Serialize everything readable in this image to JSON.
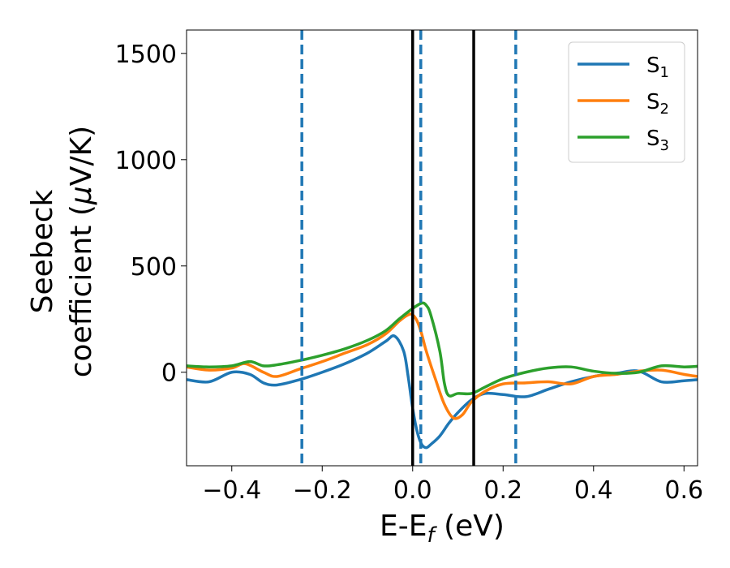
{
  "chart_data": {
    "type": "line",
    "xlabel": "E-E",
    "xlabel_sub": "f",
    "xlabel_unit": " (eV)",
    "ylabel_line1": "Seebeck",
    "ylabel_line2": "coefficient  (",
    "ylabel_mu": "μ",
    "ylabel_unit": "V/K)",
    "xlim": [
      -0.5,
      0.63
    ],
    "ylim": [
      -440,
      1610
    ],
    "xticks": [
      -0.4,
      -0.2,
      0.0,
      0.2,
      0.4,
      0.6
    ],
    "xtick_labels": [
      "−0.4",
      "−0.2",
      "0.0",
      "0.2",
      "0.4",
      "0.6"
    ],
    "yticks": [
      0,
      500,
      1000,
      1500
    ],
    "ytick_labels": [
      "0",
      "500",
      "1000",
      "1500"
    ],
    "grid": false,
    "legend_position": "top-right",
    "vlines_solid": [
      0.0,
      0.135
    ],
    "vlines_dashed": [
      -0.245,
      0.018,
      0.228
    ],
    "vline_solid_color": "#000000",
    "vline_dashed_color": "#1f77b4",
    "series": [
      {
        "name": "S",
        "sub": "1",
        "color": "#1f77b4",
        "x": [
          -0.5,
          -0.45,
          -0.4,
          -0.36,
          -0.33,
          -0.3,
          -0.25,
          -0.2,
          -0.15,
          -0.1,
          -0.06,
          -0.04,
          -0.02,
          -0.01,
          0.0,
          0.01,
          0.02,
          0.03,
          0.04,
          0.06,
          0.08,
          0.1,
          0.13,
          0.16,
          0.2,
          0.25,
          0.3,
          0.35,
          0.4,
          0.45,
          0.5,
          0.55,
          0.6,
          0.63
        ],
        "y": [
          -35,
          -45,
          0,
          -10,
          -50,
          -60,
          -35,
          0,
          40,
          90,
          145,
          170,
          100,
          -20,
          -170,
          -280,
          -340,
          -355,
          -340,
          -300,
          -240,
          -190,
          -130,
          -100,
          -105,
          -115,
          -80,
          -45,
          -20,
          -5,
          5,
          -45,
          -40,
          -35
        ]
      },
      {
        "name": "S",
        "sub": "2",
        "color": "#ff7f0e",
        "x": [
          -0.5,
          -0.45,
          -0.4,
          -0.37,
          -0.33,
          -0.3,
          -0.25,
          -0.2,
          -0.15,
          -0.1,
          -0.06,
          -0.03,
          -0.01,
          0.0,
          0.01,
          0.02,
          0.03,
          0.05,
          0.07,
          0.09,
          0.11,
          0.13,
          0.16,
          0.2,
          0.25,
          0.3,
          0.35,
          0.4,
          0.45,
          0.5,
          0.55,
          0.6,
          0.63
        ],
        "y": [
          25,
          10,
          20,
          40,
          0,
          -20,
          15,
          50,
          90,
          130,
          180,
          240,
          270,
          270,
          240,
          180,
          100,
          -30,
          -150,
          -215,
          -200,
          -140,
          -90,
          -55,
          -50,
          -45,
          -55,
          -20,
          -10,
          5,
          10,
          -10,
          -20
        ]
      },
      {
        "name": "S",
        "sub": "3",
        "color": "#2ca02c",
        "x": [
          -0.5,
          -0.45,
          -0.4,
          -0.36,
          -0.33,
          -0.3,
          -0.25,
          -0.2,
          -0.15,
          -0.1,
          -0.06,
          -0.03,
          0.0,
          0.02,
          0.03,
          0.04,
          0.06,
          0.07,
          0.08,
          0.1,
          0.13,
          0.16,
          0.2,
          0.25,
          0.3,
          0.35,
          0.4,
          0.45,
          0.5,
          0.55,
          0.6,
          0.63
        ],
        "y": [
          30,
          25,
          30,
          50,
          30,
          35,
          55,
          80,
          110,
          150,
          195,
          250,
          300,
          325,
          315,
          270,
          100,
          -50,
          -110,
          -100,
          -100,
          -70,
          -30,
          0,
          20,
          25,
          5,
          -5,
          0,
          30,
          25,
          28
        ]
      }
    ]
  }
}
